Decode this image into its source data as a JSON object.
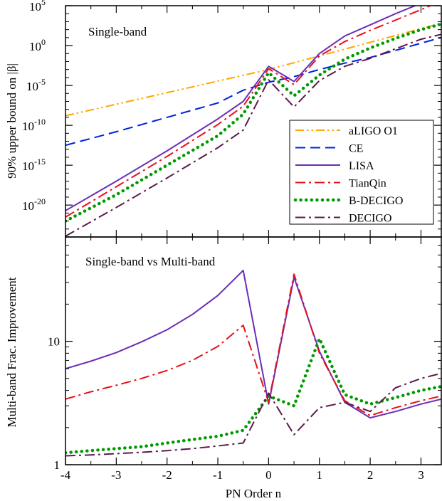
{
  "chart_data": [
    {
      "type": "line",
      "panel": "top",
      "title": "Single-band",
      "xlabel": "",
      "ylabel": "90% upper bound on |β|",
      "y_scale": "log",
      "xlim": [
        -4,
        3.4
      ],
      "ylim_log10": [
        -24,
        5
      ],
      "y_tick_labels": [
        {
          "base": "10",
          "exp": "5",
          "log10": 5
        },
        {
          "base": "10",
          "exp": "0",
          "log10": 0
        },
        {
          "base": "10",
          "exp": "-5",
          "log10": -5
        },
        {
          "base": "10",
          "exp": "-10",
          "log10": -10
        },
        {
          "base": "10",
          "exp": "-15",
          "log10": -15
        },
        {
          "base": "10",
          "exp": "-20",
          "log10": -20
        }
      ],
      "legend_position": "right, middle",
      "series": [
        {
          "name": "aLIGO O1",
          "color": "#FFA500",
          "dash": "dash-dot-dot",
          "x": [
            -4,
            0,
            3.4
          ],
          "log10_y": [
            -8.8,
            -3.0,
            2.8
          ]
        },
        {
          "name": "CE",
          "color": "#0022DD",
          "dash": "dashed",
          "x": [
            -4,
            -3,
            -2,
            -1,
            -0.5,
            0,
            0.5,
            1,
            1.5,
            2,
            2.5,
            3,
            3.4
          ],
          "log10_y": [
            -12.5,
            -10.8,
            -9.0,
            -7.2,
            -5.6,
            -4.6,
            -3.9,
            -3.0,
            -2.2,
            -1.5,
            -0.6,
            0.3,
            1.0
          ]
        },
        {
          "name": "LISA",
          "color": "#6A2EB8",
          "dash": "solid",
          "x": [
            -4,
            -3,
            -2,
            -1,
            -0.5,
            0,
            0.5,
            1,
            1.5,
            2,
            2.5,
            3,
            3.4
          ],
          "log10_y": [
            -20.7,
            -17.0,
            -13.2,
            -9.2,
            -7.0,
            -2.6,
            -4.5,
            -1.0,
            1.2,
            2.6,
            4.0,
            5.3,
            6.4
          ]
        },
        {
          "name": "TianQin",
          "color": "#E8101A",
          "dash": "dash-dot",
          "x": [
            -4,
            -3,
            -2,
            -1,
            -0.5,
            0,
            0.5,
            1,
            1.5,
            2,
            2.5,
            3,
            3.4
          ],
          "log10_y": [
            -21.5,
            -17.7,
            -13.9,
            -9.9,
            -7.6,
            -2.9,
            -4.9,
            -1.3,
            0.5,
            1.9,
            3.2,
            4.5,
            5.6
          ]
        },
        {
          "name": "B-DECIGO",
          "color": "#009900",
          "dash": "dotted",
          "x": [
            -4,
            -3,
            -2,
            -1,
            -0.5,
            0,
            0.5,
            1,
            1.5,
            2,
            2.5,
            3,
            3.4
          ],
          "log10_y": [
            -22.0,
            -18.7,
            -15.0,
            -11.3,
            -8.6,
            -3.4,
            -6.3,
            -3.7,
            -1.7,
            -0.3,
            0.9,
            2.0,
            2.7
          ]
        },
        {
          "name": "DECIGO",
          "color": "#5C1A4C",
          "dash": "dash-dot",
          "x": [
            -4,
            -3,
            -2,
            -1,
            -0.5,
            0,
            0.5,
            1,
            1.5,
            2,
            2.5,
            3,
            3.4
          ],
          "log10_y": [
            -23.9,
            -20.3,
            -16.6,
            -12.8,
            -10.6,
            -4.3,
            -7.7,
            -4.4,
            -2.6,
            -1.6,
            -0.4,
            0.8,
            1.4
          ]
        }
      ]
    },
    {
      "type": "line",
      "panel": "bottom",
      "title": "Single-band vs Multi-band",
      "xlabel": "PN Order n",
      "ylabel": "Multi-band Frac. Improvement",
      "y_scale": "log",
      "xlim": [
        -4,
        3.4
      ],
      "ylim": [
        1,
        70
      ],
      "x_ticks": [
        -4,
        -3,
        -2,
        -1,
        0,
        1,
        2,
        3
      ],
      "x_tick_labels": [
        "-4",
        "-3",
        "-2",
        "-1",
        "0",
        "1",
        "2",
        "3"
      ],
      "y_ticks": [
        1,
        10
      ],
      "y_tick_labels": [
        "1",
        "10"
      ],
      "series": [
        {
          "name": "LISA",
          "color": "#6A2EB8",
          "dash": "solid",
          "x": [
            -4,
            -3.5,
            -3,
            -2.5,
            -2,
            -1.5,
            -1,
            -0.5,
            0,
            0.5,
            1,
            1.5,
            2,
            2.5,
            3,
            3.4
          ],
          "y": [
            6.0,
            6.9,
            8.1,
            9.9,
            12.4,
            16.5,
            23.5,
            37.5,
            3.1,
            33.0,
            8.3,
            3.2,
            2.4,
            2.7,
            3.1,
            3.4
          ]
        },
        {
          "name": "TianQin",
          "color": "#E8101A",
          "dash": "dash-dot",
          "x": [
            -4,
            -3.5,
            -3,
            -2.5,
            -2,
            -1.5,
            -1,
            -0.5,
            0,
            0.5,
            1,
            1.5,
            2,
            2.5,
            3,
            3.4
          ],
          "y": [
            3.4,
            3.9,
            4.4,
            5.0,
            5.8,
            7.0,
            9.1,
            13.5,
            3.2,
            35.0,
            8.0,
            3.3,
            2.5,
            2.9,
            3.3,
            3.6
          ]
        },
        {
          "name": "B-DECIGO",
          "color": "#009900",
          "dash": "dotted",
          "x": [
            -4,
            -3.5,
            -3,
            -2.5,
            -2,
            -1.5,
            -1,
            -0.5,
            0,
            0.5,
            1,
            1.5,
            2,
            2.5,
            3,
            3.4
          ],
          "y": [
            1.25,
            1.3,
            1.35,
            1.4,
            1.5,
            1.6,
            1.7,
            1.9,
            3.6,
            3.0,
            10.5,
            3.7,
            3.1,
            3.5,
            4.0,
            4.3
          ]
        },
        {
          "name": "DECIGO",
          "color": "#5C1A4C",
          "dash": "dash-dot",
          "x": [
            -4,
            -3.5,
            -3,
            -2.5,
            -2,
            -1.5,
            -1,
            -0.5,
            0,
            0.5,
            1,
            1.5,
            2,
            2.5,
            3,
            3.4
          ],
          "y": [
            1.18,
            1.2,
            1.23,
            1.26,
            1.3,
            1.35,
            1.42,
            1.5,
            3.8,
            1.75,
            2.9,
            3.2,
            2.7,
            4.2,
            5.0,
            5.5
          ]
        }
      ]
    }
  ]
}
